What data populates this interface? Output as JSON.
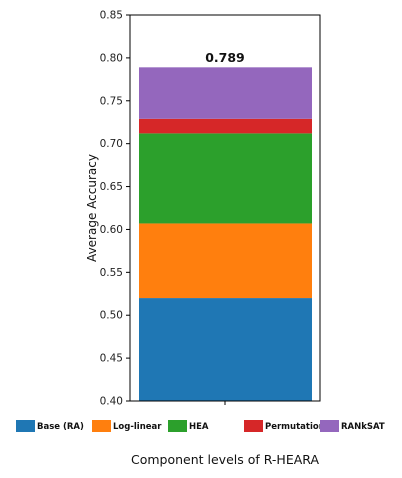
{
  "chart_data": {
    "type": "bar",
    "stacked": true,
    "categories": [
      ""
    ],
    "ylabel": "Average Accuracy",
    "xlabel": "Component levels of R-HEARA",
    "ylim": [
      0.4,
      0.85
    ],
    "yticks": [
      "0.40",
      "0.45",
      "0.50",
      "0.55",
      "0.60",
      "0.65",
      "0.70",
      "0.75",
      "0.80",
      "0.85"
    ],
    "total_label": "0.789",
    "legend_position": "bottom",
    "series": [
      {
        "name": "Base (RA)",
        "bottom": 0.4,
        "top": 0.52,
        "color": "#1f77b4"
      },
      {
        "name": "Log-linear",
        "bottom": 0.52,
        "top": 0.607,
        "color": "#ff7f0e"
      },
      {
        "name": "HEA",
        "bottom": 0.607,
        "top": 0.712,
        "color": "#2ca02c"
      },
      {
        "name": "Permutation",
        "bottom": 0.712,
        "top": 0.729,
        "color": "#d62728"
      },
      {
        "name": "RANkSAT",
        "bottom": 0.729,
        "top": 0.789,
        "color": "#9467bd"
      }
    ]
  }
}
